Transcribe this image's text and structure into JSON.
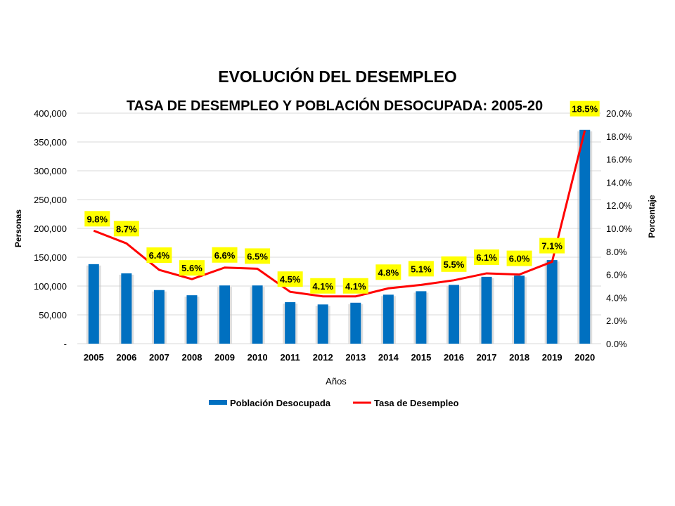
{
  "chart_data": {
    "type": "bar+line",
    "title": "EVOLUCIÓN DEL DESEMPLEO",
    "subtitle": "TASA DE DESEMPLEO Y POBLACIÓN DESOCUPADA: 2005-20",
    "xlabel": "Años",
    "ylabel": "Personas",
    "y2label": "Porcentaje",
    "categories": [
      "2005",
      "2006",
      "2007",
      "2008",
      "2009",
      "2010",
      "2011",
      "2012",
      "2013",
      "2014",
      "2015",
      "2016",
      "2017",
      "2018",
      "2019",
      "2020"
    ],
    "ylim": [
      0,
      400000
    ],
    "y2lim": [
      0,
      20
    ],
    "yticks": [
      "-",
      "50,000",
      "100,000",
      "150,000",
      "200,000",
      "250,000",
      "300,000",
      "350,000",
      "400,000"
    ],
    "y2ticks": [
      "0.0%",
      "2.0%",
      "4.0%",
      "6.0%",
      "8.0%",
      "10.0%",
      "12.0%",
      "14.0%",
      "16.0%",
      "18.0%",
      "20.0%"
    ],
    "grid": true,
    "legend_position": "bottom",
    "series": [
      {
        "name": "Población Desocupada",
        "type": "bar",
        "axis": "left",
        "color": "#0070C0",
        "values": [
          138000,
          122000,
          93000,
          84000,
          101000,
          101000,
          72000,
          68000,
          71000,
          85000,
          91000,
          102000,
          116000,
          118000,
          145000,
          371000
        ]
      },
      {
        "name": "Tasa de Desempleo",
        "type": "line",
        "axis": "right",
        "color": "#FF0000",
        "values": [
          9.8,
          8.7,
          6.4,
          5.6,
          6.6,
          6.5,
          4.5,
          4.1,
          4.1,
          4.8,
          5.1,
          5.5,
          6.1,
          6.0,
          7.1,
          18.5
        ],
        "labels": [
          "9.8%",
          "8.7%",
          "6.4%",
          "5.6%",
          "6.6%",
          "6.5%",
          "4.5%",
          "4.1%",
          "4.1%",
          "4.8%",
          "5.1%",
          "5.5%",
          "6.1%",
          "6.0%",
          "7.1%",
          "18.5%"
        ]
      }
    ]
  }
}
